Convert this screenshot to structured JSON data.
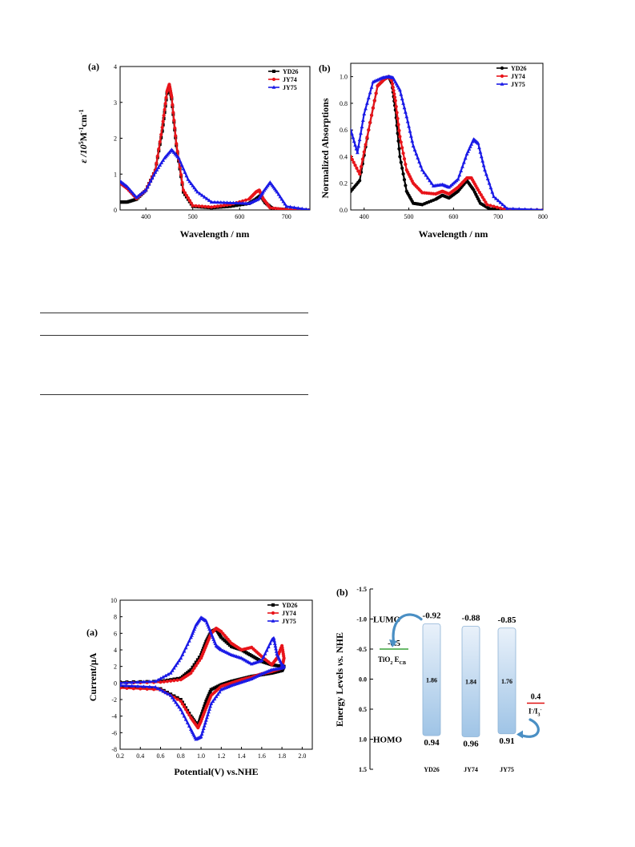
{
  "colors": {
    "YD26": "#000000",
    "JY74": "#e8141a",
    "JY75": "#1a1ae6",
    "bar_top": "#e9f1fa",
    "bar_bottom": "#9fc4e6",
    "tio2_line": "#3aa33a",
    "iodide_line": "#e01010",
    "arrow": "#4a8fc4"
  },
  "chart_data": [
    {
      "type": "line",
      "panel": "(a)",
      "xlabel": "Wavelength / nm",
      "ylabel_prefix": "ε /10",
      "ylabel_sup1": "5",
      "ylabel_mid": "M",
      "ylabel_sup2": "-1",
      "ylabel_mid2": "cm",
      "ylabel_sup3": "-1",
      "xlim": [
        345,
        750
      ],
      "ylim": [
        0,
        4
      ],
      "xticks": [
        400,
        500,
        600,
        700
      ],
      "yticks": [
        0,
        1,
        2,
        3,
        4
      ],
      "legend": "top-right",
      "series": [
        {
          "name": "YD26",
          "marker": "square",
          "x": [
            345,
            360,
            380,
            400,
            420,
            435,
            445,
            450,
            455,
            465,
            480,
            500,
            540,
            580,
            620,
            635,
            645,
            655,
            670,
            700,
            750
          ],
          "y": [
            0.22,
            0.22,
            0.3,
            0.55,
            1.1,
            2.2,
            3.25,
            3.45,
            3.1,
            1.8,
            0.5,
            0.1,
            0.06,
            0.1,
            0.18,
            0.3,
            0.4,
            0.2,
            0.04,
            0.01,
            0.0
          ]
        },
        {
          "name": "JY74",
          "marker": "circle",
          "x": [
            345,
            360,
            380,
            400,
            420,
            435,
            445,
            450,
            455,
            465,
            480,
            500,
            540,
            580,
            620,
            635,
            642,
            650,
            665,
            700,
            750
          ],
          "y": [
            0.75,
            0.6,
            0.32,
            0.55,
            1.1,
            2.3,
            3.3,
            3.5,
            3.15,
            1.85,
            0.55,
            0.12,
            0.08,
            0.15,
            0.3,
            0.5,
            0.55,
            0.32,
            0.06,
            0.01,
            0.0
          ]
        },
        {
          "name": "JY75",
          "marker": "triangle",
          "x": [
            345,
            360,
            380,
            400,
            420,
            440,
            455,
            470,
            490,
            510,
            540,
            580,
            620,
            640,
            650,
            665,
            680,
            700,
            750
          ],
          "y": [
            0.8,
            0.65,
            0.35,
            0.55,
            1.05,
            1.45,
            1.68,
            1.45,
            0.85,
            0.5,
            0.22,
            0.2,
            0.18,
            0.3,
            0.5,
            0.77,
            0.5,
            0.1,
            0.0
          ]
        }
      ]
    },
    {
      "type": "line",
      "panel": "(b)",
      "xlabel": "Wavelength / nm",
      "ylabel": "Normalized Absorptions",
      "xlim": [
        370,
        800
      ],
      "ylim": [
        0,
        1.1
      ],
      "xticks": [
        400,
        500,
        600,
        700,
        800
      ],
      "yticks": [
        0.0,
        0.2,
        0.4,
        0.6,
        0.8,
        1.0
      ],
      "ytick_labels": [
        "0.0",
        "0.2",
        "0.4",
        "0.6",
        "0.8",
        "1.0"
      ],
      "legend": "top-right",
      "series": [
        {
          "name": "YD26",
          "marker": "circle",
          "x": [
            370,
            390,
            410,
            430,
            445,
            455,
            462,
            470,
            480,
            495,
            510,
            530,
            560,
            575,
            590,
            610,
            630,
            645,
            660,
            680,
            720,
            800
          ],
          "y": [
            0.14,
            0.22,
            0.6,
            0.93,
            0.98,
            1.0,
            0.95,
            0.75,
            0.4,
            0.14,
            0.05,
            0.04,
            0.08,
            0.11,
            0.09,
            0.14,
            0.22,
            0.15,
            0.05,
            0.01,
            0.0,
            0.0
          ]
        },
        {
          "name": "JY74",
          "marker": "circle",
          "x": [
            370,
            390,
            410,
            430,
            445,
            455,
            462,
            470,
            480,
            495,
            510,
            530,
            560,
            575,
            590,
            610,
            630,
            640,
            655,
            675,
            720,
            800
          ],
          "y": [
            0.4,
            0.27,
            0.6,
            0.93,
            0.98,
            1.0,
            0.97,
            0.82,
            0.55,
            0.3,
            0.2,
            0.13,
            0.12,
            0.14,
            0.12,
            0.17,
            0.24,
            0.24,
            0.15,
            0.04,
            0.0,
            0.0
          ]
        },
        {
          "name": "JY75",
          "marker": "triangle",
          "x": [
            370,
            385,
            400,
            420,
            440,
            455,
            465,
            480,
            495,
            510,
            530,
            555,
            575,
            590,
            610,
            630,
            645,
            655,
            670,
            690,
            720,
            800
          ],
          "y": [
            0.6,
            0.43,
            0.72,
            0.96,
            0.99,
            1.0,
            0.99,
            0.9,
            0.7,
            0.48,
            0.3,
            0.18,
            0.19,
            0.17,
            0.23,
            0.42,
            0.53,
            0.5,
            0.3,
            0.1,
            0.01,
            0.0
          ]
        }
      ]
    },
    {
      "type": "line",
      "panel": "(a)",
      "xlabel": "Potential(V) vs.NHE",
      "ylabel": "Current/μA",
      "xlim": [
        0.2,
        2.1
      ],
      "ylim": [
        -8,
        10
      ],
      "xticks": [
        0.2,
        0.4,
        0.6,
        0.8,
        1.0,
        1.2,
        1.4,
        1.6,
        1.8,
        2.0
      ],
      "xtick_labels": [
        "0.2",
        "0.4",
        "0.6",
        "0.8",
        "1.0",
        "1.2",
        "1.4",
        "1.6",
        "1.8",
        "2.0"
      ],
      "yticks": [
        -8,
        -6,
        -4,
        -2,
        0,
        2,
        4,
        6,
        8,
        10
      ],
      "legend": "top-right",
      "series": [
        {
          "name": "YD26",
          "marker": "square",
          "x": [
            0.2,
            0.6,
            0.8,
            0.9,
            1.0,
            1.05,
            1.1,
            1.15,
            1.2,
            1.3,
            1.4,
            1.5,
            1.6,
            1.7,
            1.8,
            1.82,
            1.8,
            1.7,
            1.6,
            1.5,
            1.4,
            1.3,
            1.2,
            1.1,
            1.05,
            1.0,
            0.97,
            0.9,
            0.8,
            0.6,
            0.2
          ],
          "y": [
            0.1,
            0.2,
            0.6,
            1.6,
            3.4,
            5.0,
            6.2,
            6.5,
            5.5,
            4.4,
            4.0,
            3.3,
            2.6,
            2.2,
            2.0,
            2.0,
            1.5,
            1.2,
            1.0,
            0.8,
            0.5,
            0.2,
            -0.2,
            -0.8,
            -2.2,
            -4.0,
            -5.2,
            -4.0,
            -2.0,
            -0.7,
            -0.5
          ]
        },
        {
          "name": "JY74",
          "marker": "circle",
          "x": [
            0.2,
            0.6,
            0.8,
            0.9,
            1.0,
            1.05,
            1.1,
            1.15,
            1.2,
            1.3,
            1.4,
            1.5,
            1.6,
            1.7,
            1.75,
            1.8,
            1.82,
            1.8,
            1.7,
            1.6,
            1.5,
            1.4,
            1.3,
            1.2,
            1.1,
            1.05,
            1.0,
            0.97,
            0.9,
            0.8,
            0.6,
            0.2
          ],
          "y": [
            0.0,
            0.1,
            0.4,
            1.2,
            3.0,
            4.5,
            6.0,
            6.6,
            6.2,
            4.8,
            4.0,
            4.3,
            3.2,
            2.2,
            3.0,
            4.5,
            3.0,
            1.8,
            1.4,
            1.1,
            0.7,
            0.4,
            0.0,
            -0.4,
            -1.5,
            -3.0,
            -4.6,
            -5.4,
            -4.2,
            -2.2,
            -0.8,
            -0.6
          ]
        },
        {
          "name": "JY75",
          "marker": "triangle",
          "x": [
            0.2,
            0.55,
            0.7,
            0.8,
            0.9,
            0.95,
            1.0,
            1.05,
            1.1,
            1.15,
            1.2,
            1.3,
            1.4,
            1.5,
            1.6,
            1.7,
            1.72,
            1.75,
            1.8,
            1.82,
            1.8,
            1.7,
            1.6,
            1.5,
            1.4,
            1.3,
            1.2,
            1.1,
            1.05,
            1.0,
            0.95,
            0.9,
            0.8,
            0.7,
            0.55,
            0.2
          ],
          "y": [
            0.0,
            0.2,
            1.2,
            3.0,
            5.5,
            7.0,
            7.9,
            7.5,
            6.0,
            4.5,
            4.0,
            3.4,
            3.0,
            2.3,
            2.7,
            5.2,
            5.4,
            3.5,
            2.2,
            2.0,
            1.8,
            1.6,
            1.1,
            0.5,
            0.1,
            -0.3,
            -0.8,
            -2.5,
            -4.5,
            -6.5,
            -6.8,
            -5.6,
            -3.2,
            -1.5,
            -0.5,
            -0.3
          ]
        }
      ]
    },
    {
      "type": "bar",
      "panel": "(b)",
      "ylabel_prefix": "Energy Levels ",
      "ylabel_italic": "vs.",
      "ylabel_suffix": " NHE",
      "ylim": [
        -1.5,
        1.5
      ],
      "yticks": [
        -1.5,
        -1.0,
        -0.5,
        0.0,
        0.5,
        1.0,
        1.5
      ],
      "ytick_labels": [
        "-1.5",
        "-1.0",
        "-0.5",
        "0.0",
        "0.5",
        "1.0",
        "1.5"
      ],
      "categories": [
        "YD26",
        "JY74",
        "JY75"
      ],
      "lumo": [
        -0.92,
        -0.88,
        -0.85
      ],
      "homo": [
        0.94,
        0.96,
        0.91
      ],
      "lumo_labels": [
        "-0.92",
        "-0.88",
        "-0.85"
      ],
      "homo_labels": [
        "0.94",
        "0.96",
        "0.91"
      ],
      "gap_labels": [
        "1.86",
        "1.84",
        "1.76"
      ],
      "lumo_text": "LUMO",
      "homo_text": "HOMO",
      "tio2_level": -0.5,
      "tio2_value_label": "-0.5",
      "tio2_label_main": "TiO",
      "tio2_label_sub": "2",
      "tio2_label_e": " E",
      "tio2_label_cb": "CB",
      "iodide_level": 0.4,
      "iodide_value_label": "0.4",
      "iodide_label_i": "I",
      "iodide_label_sup": "-",
      "iodide_label_slash": "/I",
      "iodide_label_sub": "3",
      "iodide_label_sup2": "-"
    }
  ]
}
